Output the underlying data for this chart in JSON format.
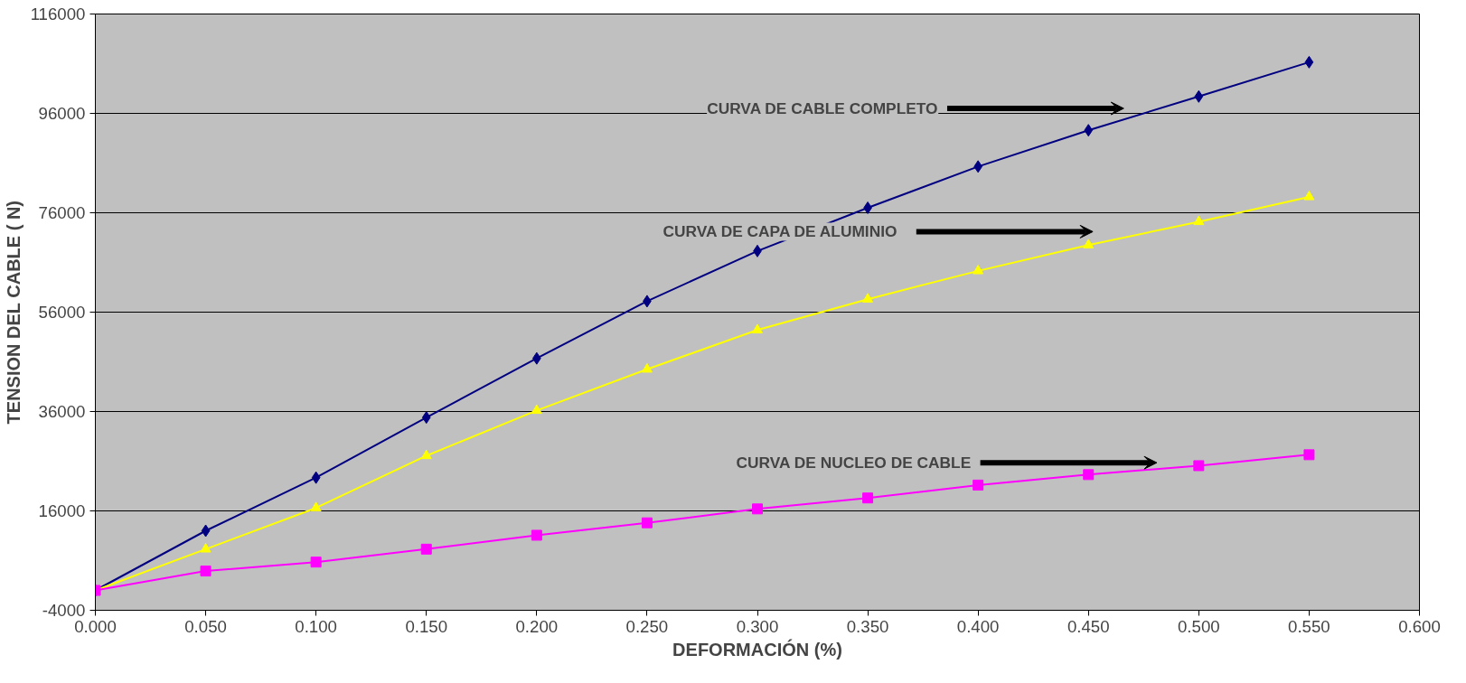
{
  "chart_data": {
    "type": "line",
    "xlabel": "DEFORMACIÓN (%)",
    "ylabel": "TENSION DEL CABLE ( N)",
    "x": [
      0,
      0.05,
      0.1,
      0.15,
      0.2,
      0.25,
      0.3,
      0.35,
      0.4,
      0.45,
      0.5,
      0.55
    ],
    "series": [
      {
        "color": "#000080",
        "marker": "diamond",
        "values": [
          0,
          12000,
          22700,
          34800,
          46700,
          58200,
          68300,
          77000,
          85300,
          92600,
          99400,
          106300
        ]
      },
      {
        "color": "#ffff00",
        "marker": "triangle",
        "values": [
          0,
          8300,
          16600,
          27100,
          36200,
          44500,
          52400,
          58600,
          64300,
          69500,
          74200,
          79200
        ]
      },
      {
        "color": "#ff00ff",
        "marker": "square",
        "values": [
          0,
          3900,
          5700,
          8300,
          11100,
          13600,
          16400,
          18600,
          21200,
          23300,
          25100,
          27300
        ]
      }
    ],
    "xlim": [
      0,
      0.6
    ],
    "ylim": [
      -4000,
      116000
    ],
    "xticks": [
      {
        "value": 0,
        "label": "0.000"
      },
      {
        "value": 0.05,
        "label": "0.050"
      },
      {
        "value": 0.1,
        "label": "0.100"
      },
      {
        "value": 0.15,
        "label": "0.150"
      },
      {
        "value": 0.2,
        "label": "0.200"
      },
      {
        "value": 0.25,
        "label": "0.250"
      },
      {
        "value": 0.3,
        "label": "0.300"
      },
      {
        "value": 0.35,
        "label": "0.350"
      },
      {
        "value": 0.4,
        "label": "0.400"
      },
      {
        "value": 0.45,
        "label": "0.450"
      },
      {
        "value": 0.5,
        "label": "0.500"
      },
      {
        "value": 0.55,
        "label": "0.550"
      },
      {
        "value": 0.6,
        "label": "0.600"
      }
    ],
    "yticks": [
      -4000,
      16000,
      36000,
      56000,
      76000,
      96000,
      116000
    ],
    "grid": "y",
    "annotations": [
      "CURVA DE CABLE COMPLETO",
      "CURVA DE CAPA DE   ALUMINIO",
      "CURVA DE NUCLEO DE CABLE"
    ]
  }
}
